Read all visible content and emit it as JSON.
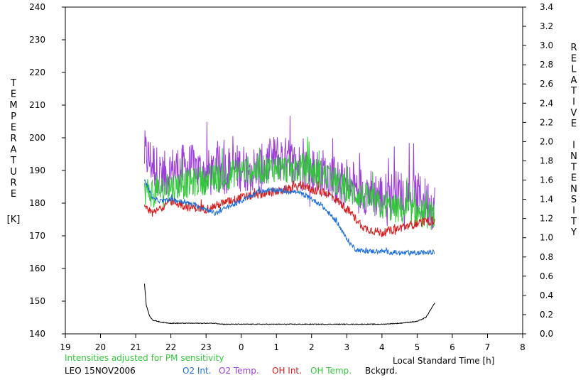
{
  "chart_data": {
    "type": "line",
    "ylabel_left": "TEMPERATURE",
    "ylabel_left_unit": "[K]",
    "ylabel_right": "RELATIVE INTENSITY",
    "xlabel": "Local Standard Time [h]",
    "note": "Intensities adjusted for PM sensitivity",
    "station_date": "LEO 15NOV2006",
    "x_ticks": [
      "19",
      "20",
      "21",
      "22",
      "23",
      "0",
      "1",
      "2",
      "3",
      "4",
      "5",
      "6",
      "7",
      "8"
    ],
    "y_left_ticks": [
      "140",
      "150",
      "160",
      "170",
      "180",
      "190",
      "200",
      "210",
      "220",
      "230",
      "240"
    ],
    "y_right_ticks": [
      "0.0",
      "0.2",
      "0.4",
      "0.6",
      "0.8",
      "1.0",
      "1.2",
      "1.4",
      "1.6",
      "1.8",
      "2.0",
      "2.2",
      "2.4",
      "2.6",
      "2.8",
      "3.0",
      "3.2",
      "3.4"
    ],
    "xlim": [
      19,
      32
    ],
    "ylim_left": [
      140,
      240
    ],
    "ylim_right": [
      0,
      3.4
    ],
    "colors": {
      "o2_int": "#1f6fd8",
      "o2_temp": "#9b3fd6",
      "oh_int": "#d81c1c",
      "oh_temp": "#33c93a",
      "bckgrd": "#000000"
    },
    "series": [
      {
        "name": "O2 Int.",
        "axis": "right",
        "x": [
          21.25,
          21.5,
          21.75,
          22,
          22.5,
          23,
          23.25,
          23.5,
          24,
          24.5,
          25,
          25.25,
          25.5,
          25.75,
          26,
          26.25,
          26.5,
          26.75,
          27,
          27.25,
          27.5,
          28,
          28.5,
          29,
          29.5
        ],
        "values": [
          1.6,
          1.4,
          1.38,
          1.4,
          1.36,
          1.3,
          1.25,
          1.3,
          1.38,
          1.48,
          1.5,
          1.48,
          1.48,
          1.45,
          1.4,
          1.35,
          1.25,
          1.15,
          0.98,
          0.88,
          0.86,
          0.86,
          0.84,
          0.84,
          0.85
        ]
      },
      {
        "name": "O2 Temp.",
        "axis": "left",
        "x": [
          21.25,
          21.5,
          21.75,
          22,
          22.5,
          23,
          23.5,
          24,
          24.5,
          25,
          25.5,
          25.75,
          26,
          26.5,
          26.75,
          27,
          27.5,
          28,
          28.5,
          29,
          29.5
        ],
        "values": [
          195,
          192,
          188,
          190,
          191,
          189,
          190,
          191,
          190,
          194,
          192,
          191,
          190,
          189,
          186,
          185,
          184,
          182,
          183,
          182,
          179
        ]
      },
      {
        "name": "OH Int.",
        "axis": "right",
        "x": [
          21.25,
          21.5,
          21.75,
          22,
          22.5,
          23,
          23.5,
          24,
          24.5,
          25,
          25.5,
          25.75,
          26,
          26.5,
          26.75,
          27,
          27.25,
          27.5,
          28,
          28.5,
          29,
          29.5
        ],
        "values": [
          1.3,
          1.25,
          1.32,
          1.38,
          1.32,
          1.3,
          1.36,
          1.42,
          1.45,
          1.48,
          1.52,
          1.55,
          1.5,
          1.45,
          1.38,
          1.3,
          1.2,
          1.1,
          1.05,
          1.1,
          1.15,
          1.18
        ]
      },
      {
        "name": "OH Temp.",
        "axis": "left",
        "x": [
          21.25,
          21.5,
          21.75,
          22,
          22.5,
          23,
          23.5,
          24,
          24.5,
          25,
          25.5,
          25.75,
          26,
          26.5,
          26.75,
          27,
          27.5,
          28,
          28.5,
          29,
          29.5
        ],
        "values": [
          184,
          183,
          184,
          185,
          186,
          187,
          188,
          190,
          190,
          191,
          190,
          191,
          190,
          188,
          186,
          184,
          182,
          179,
          178,
          177,
          176
        ]
      },
      {
        "name": "Bckgrd.",
        "axis": "right",
        "x": [
          21.25,
          21.3,
          21.4,
          21.5,
          21.75,
          22,
          23,
          23.25,
          23.5,
          24,
          25,
          26,
          27,
          28,
          28.5,
          29,
          29.25,
          29.5
        ],
        "values": [
          0.52,
          0.3,
          0.18,
          0.14,
          0.12,
          0.11,
          0.11,
          0.11,
          0.1,
          0.1,
          0.1,
          0.1,
          0.1,
          0.1,
          0.11,
          0.13,
          0.17,
          0.32
        ]
      }
    ]
  },
  "legend": {
    "o2_int": "O2 Int.",
    "o2_temp": "O2 Temp.",
    "oh_int": "OH Int.",
    "oh_temp": "OH Temp.",
    "bckgrd": "Bckgrd."
  }
}
